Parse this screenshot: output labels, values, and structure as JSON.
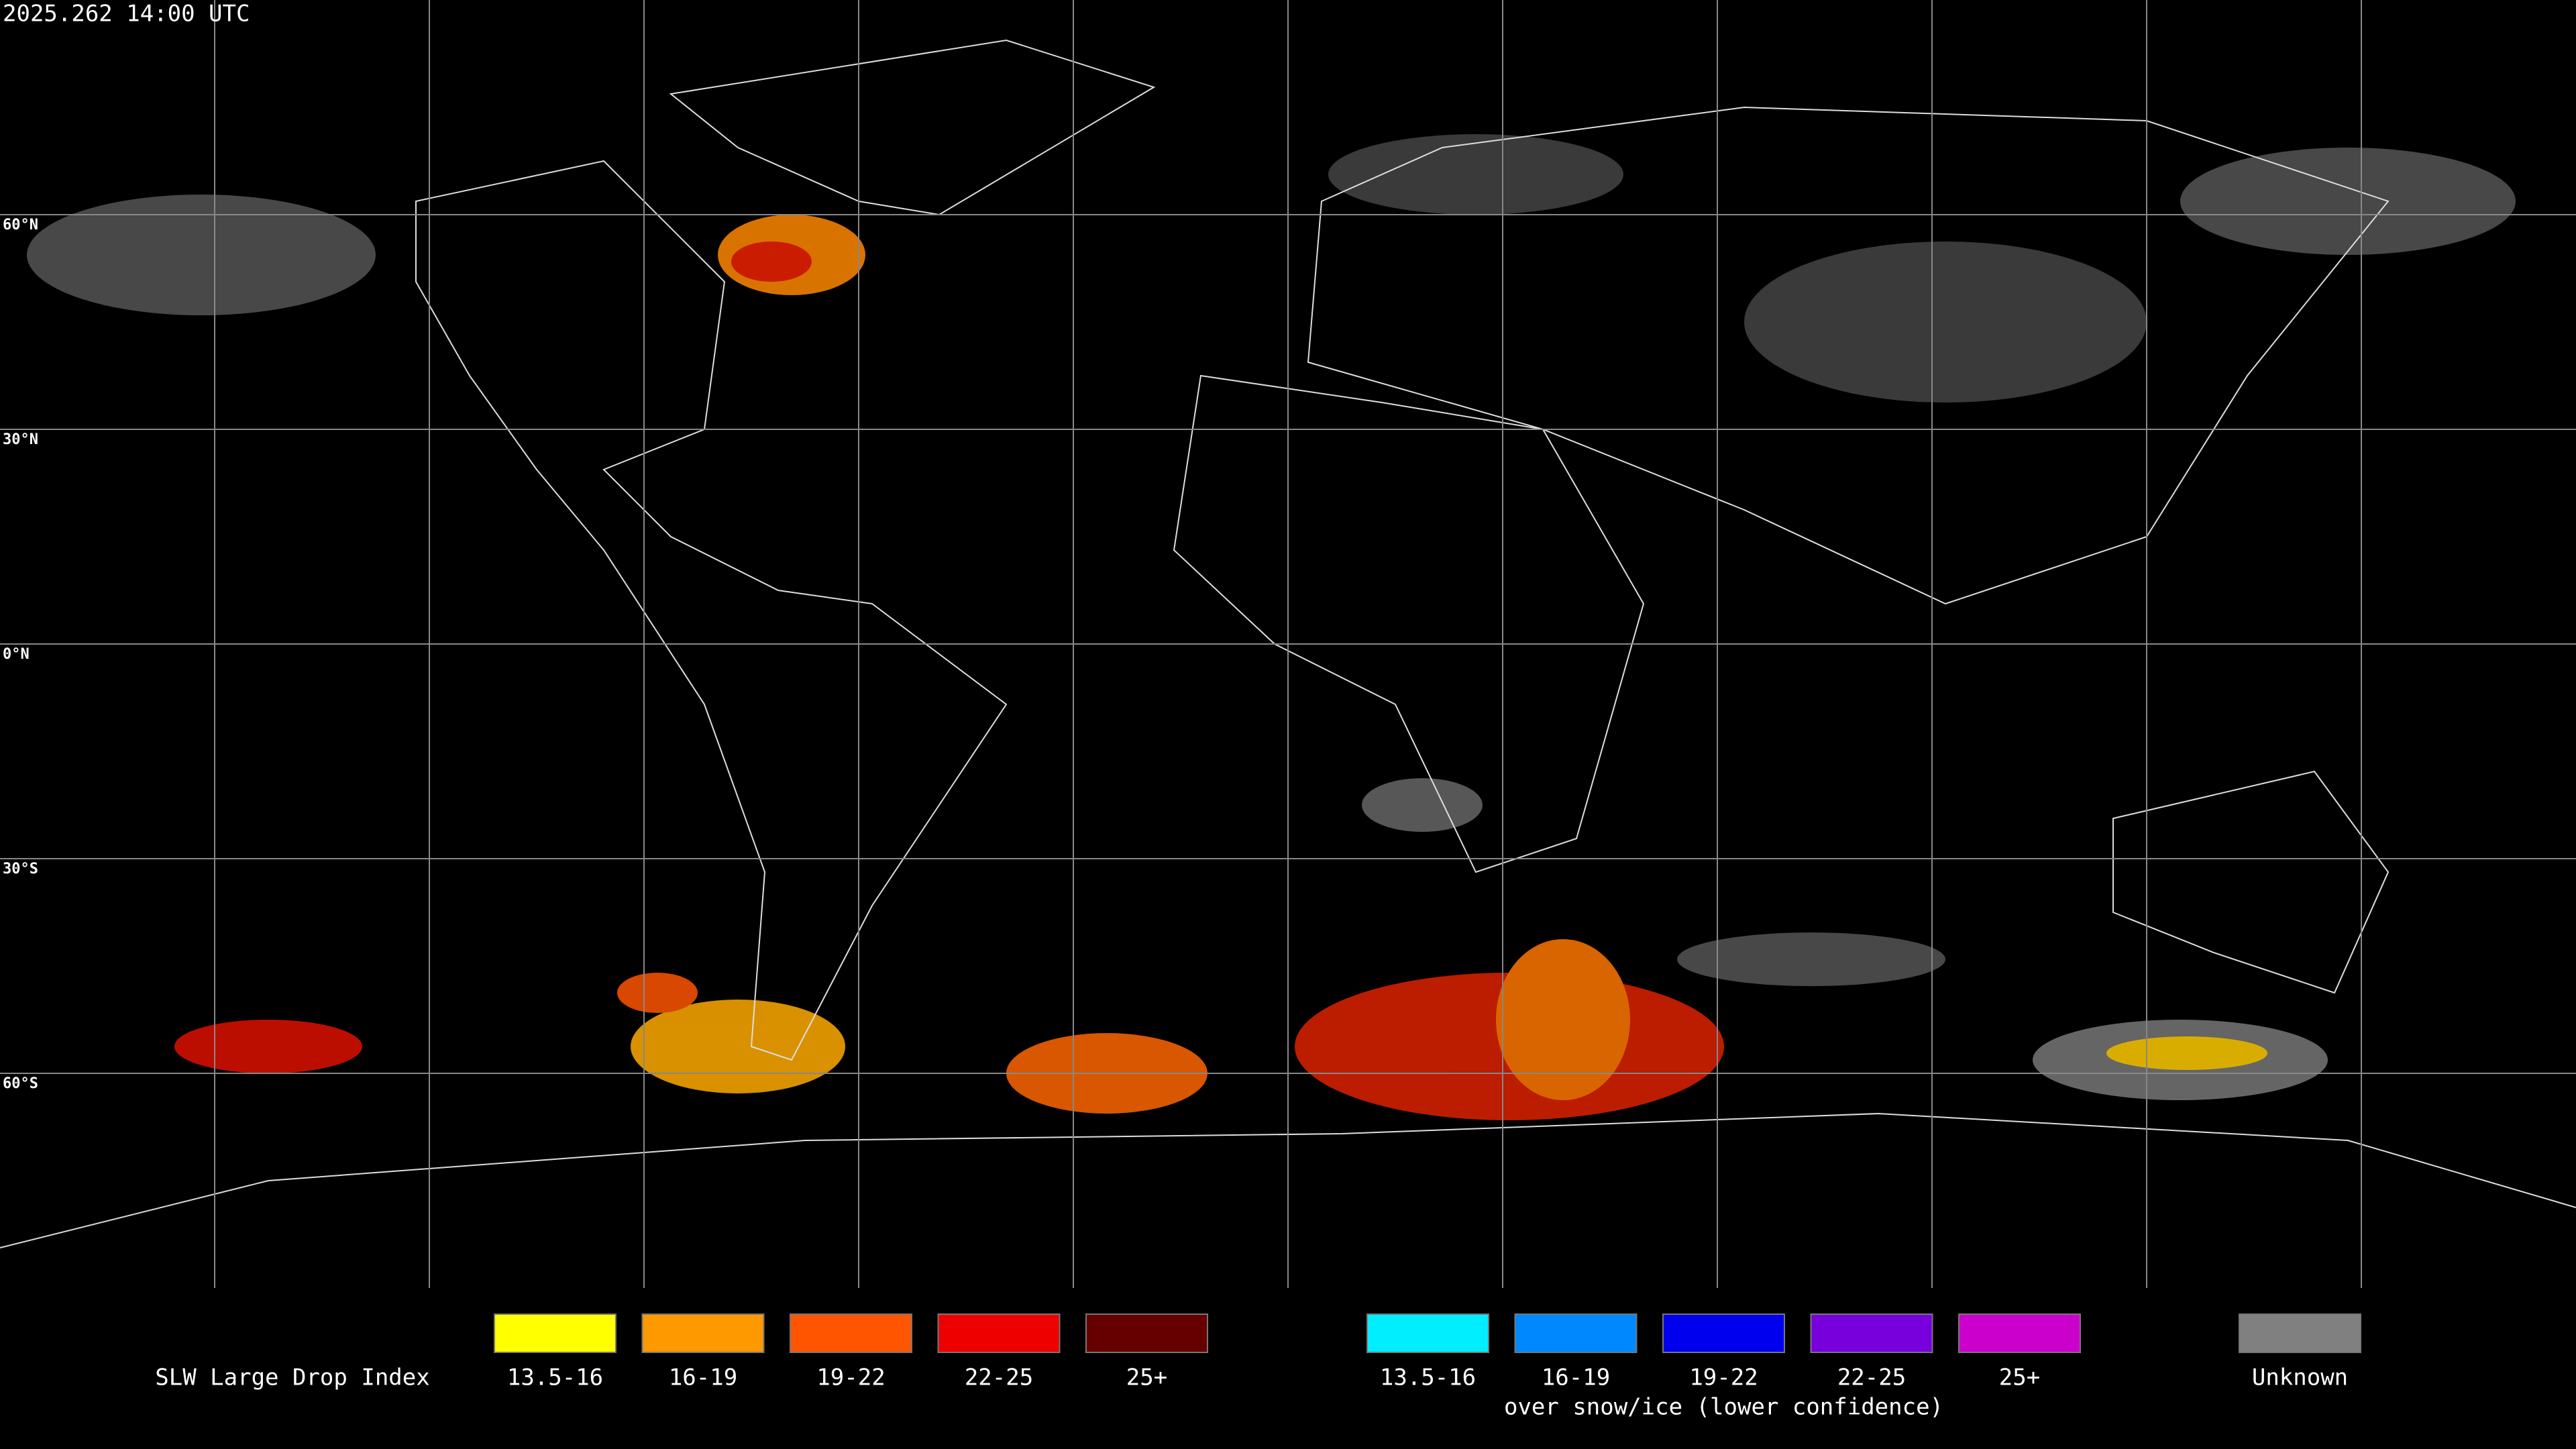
{
  "header": {
    "timestamp": "2025.262 14:00 UTC"
  },
  "grid": {
    "lat_labels": [
      "60°N",
      "30°N",
      "0°N",
      "30°S",
      "60°S"
    ]
  },
  "legend": {
    "title": "SLW Large Drop Index",
    "groups": [
      {
        "items": [
          {
            "label": "13.5-16",
            "color": "#ffff00"
          },
          {
            "label": "16-19",
            "color": "#ff9900"
          },
          {
            "label": "19-22",
            "color": "#ff5500"
          },
          {
            "label": "22-25",
            "color": "#ee0000"
          },
          {
            "label": "25+",
            "color": "#660000"
          }
        ]
      },
      {
        "items": [
          {
            "label": "13.5-16",
            "color": "#00eeff"
          },
          {
            "label": "16-19",
            "color": "#0088ff"
          },
          {
            "label": "19-22",
            "color": "#0000ee"
          },
          {
            "label": "22-25",
            "color": "#7700dd"
          },
          {
            "label": "25+",
            "color": "#cc00cc"
          }
        ],
        "caption": "over snow/ice (lower confidence)"
      }
    ],
    "unknown": {
      "label": "Unknown",
      "color": "#808080"
    }
  }
}
